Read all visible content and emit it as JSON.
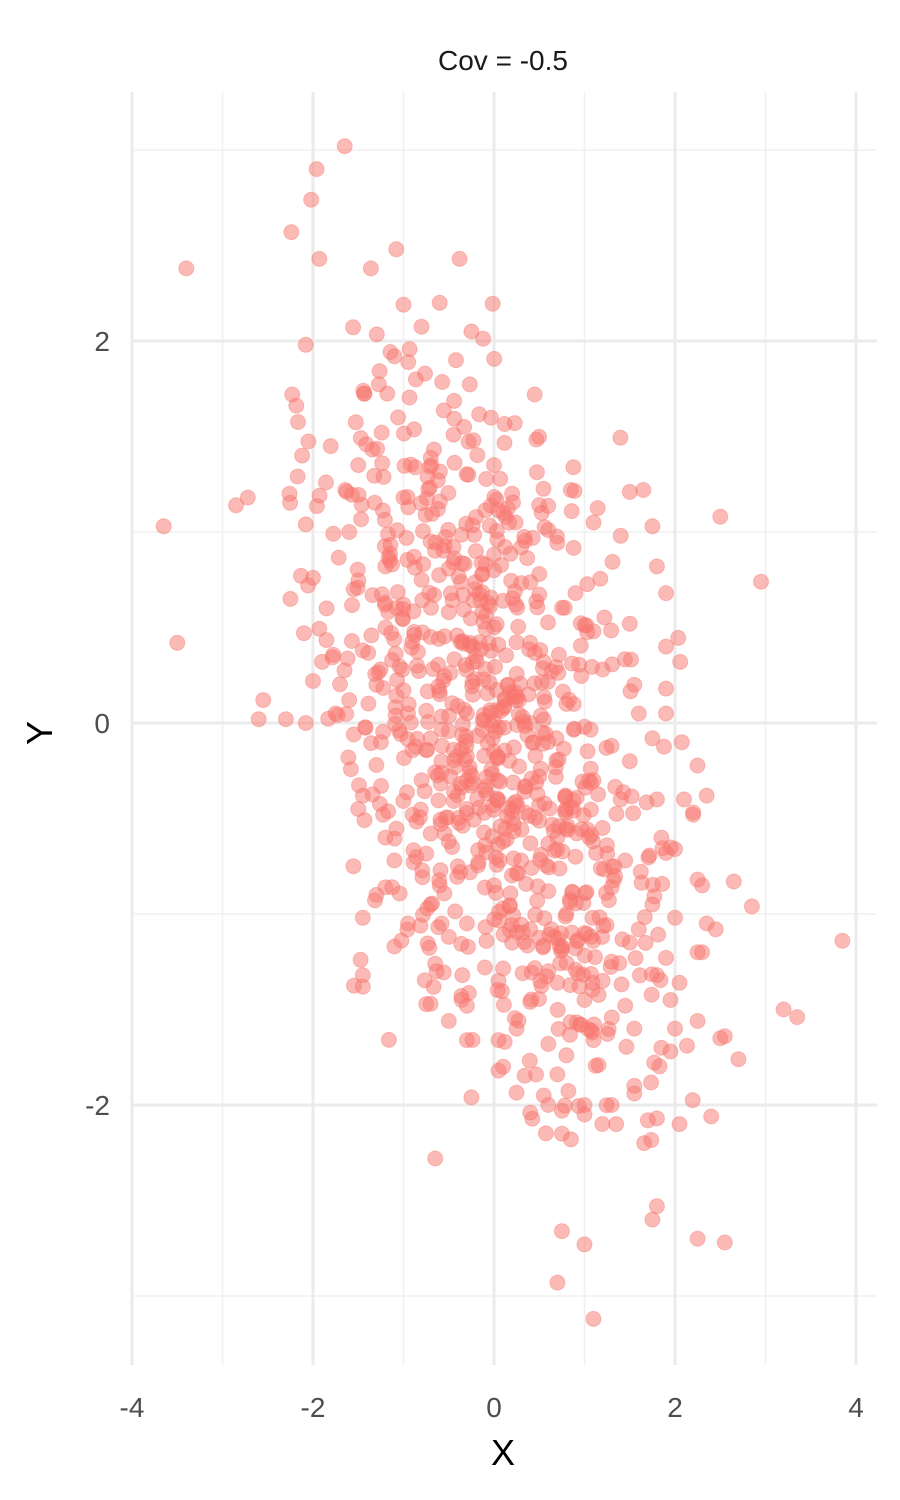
{
  "chart_data": {
    "type": "scatter",
    "title": "Cov = -0.5",
    "xlabel": "X",
    "ylabel": "Y",
    "xlim": [
      -4,
      4.2
    ],
    "ylim": [
      -3.4,
      3.4
    ],
    "x_ticks": [
      "-4",
      "-2",
      "0",
      "2",
      "4"
    ],
    "y_ticks": [
      "-2",
      "0",
      "2"
    ],
    "grid": true,
    "point_color": "#F8766D",
    "point_alpha": 0.5,
    "n_points": 1000,
    "series": [
      {
        "points": [
          {
            "x": -1.65,
            "y": 3.02
          },
          {
            "x": -1.96,
            "y": 2.9
          },
          {
            "x": -2.02,
            "y": 2.74
          },
          {
            "x": -2.24,
            "y": 2.57
          },
          {
            "x": -1.93,
            "y": 2.43
          },
          {
            "x": -3.4,
            "y": 2.38
          },
          {
            "x": -1.36,
            "y": 2.38
          },
          {
            "x": -1.08,
            "y": 2.48
          },
          {
            "x": -0.38,
            "y": 2.43
          },
          {
            "x": -1.0,
            "y": 2.19
          },
          {
            "x": -0.6,
            "y": 2.2
          },
          {
            "x": -0.25,
            "y": 2.05
          },
          {
            "x": -2.08,
            "y": 1.98
          },
          {
            "x": -1.1,
            "y": 1.92
          },
          {
            "x": -0.42,
            "y": 1.9
          },
          {
            "x": 0.45,
            "y": 1.72
          },
          {
            "x": -2.23,
            "y": 1.72
          },
          {
            "x": -1.06,
            "y": 1.6
          },
          {
            "x": -0.33,
            "y": 1.55
          },
          {
            "x": 0.23,
            "y": 1.57
          },
          {
            "x": -2.12,
            "y": 1.4
          },
          {
            "x": -1.5,
            "y": 1.35
          },
          {
            "x": 0.0,
            "y": 1.35
          },
          {
            "x": -2.85,
            "y": 1.14
          },
          {
            "x": -2.72,
            "y": 1.18
          },
          {
            "x": -2.26,
            "y": 1.2
          },
          {
            "x": -1.0,
            "y": 1.18
          },
          {
            "x": -0.62,
            "y": 1.12
          },
          {
            "x": 0.2,
            "y": 1.2
          },
          {
            "x": 0.85,
            "y": 1.22
          },
          {
            "x": 1.5,
            "y": 1.21
          },
          {
            "x": 1.65,
            "y": 1.22
          },
          {
            "x": 2.5,
            "y": 1.08
          },
          {
            "x": -3.65,
            "y": 1.03
          },
          {
            "x": -2.08,
            "y": 1.04
          },
          {
            "x": -1.6,
            "y": 1.0
          },
          {
            "x": -0.7,
            "y": 0.95
          },
          {
            "x": -0.2,
            "y": 0.9
          },
          {
            "x": 0.3,
            "y": 0.92
          },
          {
            "x": 0.6,
            "y": 1.01
          },
          {
            "x": 1.1,
            "y": 1.05
          },
          {
            "x": 1.4,
            "y": 0.98
          },
          {
            "x": 1.75,
            "y": 1.03
          },
          {
            "x": -1.2,
            "y": 0.82
          },
          {
            "x": -0.8,
            "y": 0.75
          },
          {
            "x": 0.0,
            "y": 0.8
          },
          {
            "x": 0.5,
            "y": 0.78
          },
          {
            "x": 1.8,
            "y": 0.82
          },
          {
            "x": 2.95,
            "y": 0.74
          },
          {
            "x": -2.0,
            "y": 0.76
          },
          {
            "x": -1.55,
            "y": 0.7
          },
          {
            "x": -1.0,
            "y": 0.62
          },
          {
            "x": -0.5,
            "y": 0.58
          },
          {
            "x": 0.1,
            "y": 0.64
          },
          {
            "x": 0.9,
            "y": 0.68
          },
          {
            "x": 1.9,
            "y": 0.68
          },
          {
            "x": -2.25,
            "y": 0.65
          },
          {
            "x": -1.85,
            "y": 0.6
          },
          {
            "x": -1.2,
            "y": 0.5
          },
          {
            "x": -0.7,
            "y": 0.45
          },
          {
            "x": 0.0,
            "y": 0.5
          },
          {
            "x": 0.4,
            "y": 0.42
          },
          {
            "x": 1.1,
            "y": 0.48
          },
          {
            "x": 1.5,
            "y": 0.52
          },
          {
            "x": -3.5,
            "y": 0.42
          },
          {
            "x": -2.1,
            "y": 0.47
          },
          {
            "x": -1.45,
            "y": 0.38
          },
          {
            "x": -0.85,
            "y": 0.3
          },
          {
            "x": -0.2,
            "y": 0.35
          },
          {
            "x": 0.55,
            "y": 0.32
          },
          {
            "x": 1.2,
            "y": 0.28
          },
          {
            "x": 1.9,
            "y": 0.4
          },
          {
            "x": -1.9,
            "y": 0.32
          },
          {
            "x": -1.3,
            "y": 0.2
          },
          {
            "x": -0.6,
            "y": 0.15
          },
          {
            "x": 0.15,
            "y": 0.2
          },
          {
            "x": 0.8,
            "y": 0.1
          },
          {
            "x": 1.55,
            "y": 0.2
          },
          {
            "x": 1.9,
            "y": 0.18
          },
          {
            "x": -2.0,
            "y": 0.22
          },
          {
            "x": -1.6,
            "y": 0.12
          },
          {
            "x": -0.95,
            "y": 0.05
          },
          {
            "x": -0.3,
            "y": 0.05
          },
          {
            "x": 0.4,
            "y": 0.0
          },
          {
            "x": 1.0,
            "y": -0.02
          },
          {
            "x": 1.6,
            "y": 0.05
          },
          {
            "x": 1.9,
            "y": 0.05
          },
          {
            "x": -2.6,
            "y": 0.02
          },
          {
            "x": -2.55,
            "y": 0.12
          },
          {
            "x": -2.3,
            "y": 0.02
          },
          {
            "x": -2.08,
            "y": 0.0
          },
          {
            "x": -1.75,
            "y": 0.05
          },
          {
            "x": -1.55,
            "y": -0.06
          },
          {
            "x": -1.25,
            "y": -0.1
          },
          {
            "x": -0.7,
            "y": -0.08
          },
          {
            "x": 0.0,
            "y": -0.15
          },
          {
            "x": 0.6,
            "y": -0.1
          },
          {
            "x": 1.3,
            "y": -0.12
          },
          {
            "x": 1.75,
            "y": -0.08
          },
          {
            "x": -1.3,
            "y": -0.22
          },
          {
            "x": -0.8,
            "y": -0.3
          },
          {
            "x": -0.1,
            "y": -0.35
          },
          {
            "x": 0.5,
            "y": -0.28
          },
          {
            "x": 1.1,
            "y": -0.3
          },
          {
            "x": 1.5,
            "y": -0.2
          },
          {
            "x": -1.5,
            "y": -0.45
          },
          {
            "x": -0.9,
            "y": -0.48
          },
          {
            "x": -0.3,
            "y": -0.45
          },
          {
            "x": 0.2,
            "y": -0.5
          },
          {
            "x": 0.8,
            "y": -0.45
          },
          {
            "x": 1.4,
            "y": -0.4
          },
          {
            "x": 1.8,
            "y": -0.4
          },
          {
            "x": 2.1,
            "y": -0.4
          },
          {
            "x": 2.35,
            "y": -0.38
          },
          {
            "x": -1.45,
            "y": -0.38
          },
          {
            "x": -1.2,
            "y": -0.6
          },
          {
            "x": -0.5,
            "y": -0.62
          },
          {
            "x": 0.1,
            "y": -0.62
          },
          {
            "x": 0.7,
            "y": -0.6
          },
          {
            "x": 1.2,
            "y": -0.55
          },
          {
            "x": 1.85,
            "y": -0.6
          },
          {
            "x": 2.2,
            "y": -0.48
          },
          {
            "x": -1.1,
            "y": -0.72
          },
          {
            "x": -0.4,
            "y": -0.75
          },
          {
            "x": 0.3,
            "y": -0.72
          },
          {
            "x": 0.9,
            "y": -0.7
          },
          {
            "x": 1.45,
            "y": -0.72
          },
          {
            "x": 1.9,
            "y": -0.68
          },
          {
            "x": 2.0,
            "y": -0.66
          },
          {
            "x": -1.2,
            "y": -0.86
          },
          {
            "x": -0.6,
            "y": -0.85
          },
          {
            "x": 0.0,
            "y": -0.85
          },
          {
            "x": 0.6,
            "y": -0.88
          },
          {
            "x": 1.3,
            "y": -0.86
          },
          {
            "x": 2.25,
            "y": -0.82
          },
          {
            "x": 2.3,
            "y": -0.85
          },
          {
            "x": 2.65,
            "y": -0.83
          },
          {
            "x": -1.3,
            "y": -0.9
          },
          {
            "x": -0.7,
            "y": -0.95
          },
          {
            "x": 0.1,
            "y": -0.97
          },
          {
            "x": 0.8,
            "y": -1.0
          },
          {
            "x": 1.75,
            "y": -0.95
          },
          {
            "x": 2.85,
            "y": -0.96
          },
          {
            "x": -1.45,
            "y": -1.02
          },
          {
            "x": -0.95,
            "y": -1.05
          },
          {
            "x": -0.3,
            "y": -1.05
          },
          {
            "x": 0.4,
            "y": -1.08
          },
          {
            "x": 1.0,
            "y": -1.1
          },
          {
            "x": 1.6,
            "y": -1.08
          },
          {
            "x": 2.0,
            "y": -1.02
          },
          {
            "x": 2.35,
            "y": -1.05
          },
          {
            "x": 2.45,
            "y": -1.08
          },
          {
            "x": -1.1,
            "y": -1.17
          },
          {
            "x": -0.5,
            "y": -1.12
          },
          {
            "x": 0.2,
            "y": -1.15
          },
          {
            "x": 0.9,
            "y": -1.18
          },
          {
            "x": 1.5,
            "y": -1.15
          },
          {
            "x": 2.3,
            "y": -1.2
          },
          {
            "x": 3.85,
            "y": -1.14
          },
          {
            "x": -0.65,
            "y": -1.26
          },
          {
            "x": -0.1,
            "y": -1.28
          },
          {
            "x": 0.6,
            "y": -1.3
          },
          {
            "x": 1.3,
            "y": -1.25
          },
          {
            "x": 1.9,
            "y": -1.23
          },
          {
            "x": 2.25,
            "y": -1.2
          },
          {
            "x": -1.45,
            "y": -1.32
          },
          {
            "x": -1.45,
            "y": -1.38
          },
          {
            "x": -0.35,
            "y": -1.32
          },
          {
            "x": 0.05,
            "y": -1.35
          },
          {
            "x": 0.7,
            "y": -1.36
          },
          {
            "x": 1.2,
            "y": -1.35
          },
          {
            "x": 1.8,
            "y": -1.32
          },
          {
            "x": 2.05,
            "y": -1.36
          },
          {
            "x": -0.7,
            "y": -1.47
          },
          {
            "x": -0.3,
            "y": -1.48
          },
          {
            "x": 0.4,
            "y": -1.46
          },
          {
            "x": 1.0,
            "y": -1.45
          },
          {
            "x": 1.45,
            "y": -1.48
          },
          {
            "x": 1.95,
            "y": -1.45
          },
          {
            "x": 3.2,
            "y": -1.5
          },
          {
            "x": 3.35,
            "y": -1.54
          },
          {
            "x": -0.5,
            "y": -1.56
          },
          {
            "x": 0.25,
            "y": -1.6
          },
          {
            "x": 0.95,
            "y": -1.58
          },
          {
            "x": 1.55,
            "y": -1.6
          },
          {
            "x": 2.0,
            "y": -1.6
          },
          {
            "x": 2.25,
            "y": -1.56
          },
          {
            "x": -0.3,
            "y": -1.66
          },
          {
            "x": 0.05,
            "y": -1.66
          },
          {
            "x": 0.6,
            "y": -1.68
          },
          {
            "x": 1.1,
            "y": -1.66
          },
          {
            "x": 1.85,
            "y": -1.7
          },
          {
            "x": 2.5,
            "y": -1.65
          },
          {
            "x": 2.55,
            "y": -1.64
          },
          {
            "x": 0.8,
            "y": -1.74
          },
          {
            "x": 1.95,
            "y": -1.72
          },
          {
            "x": 2.7,
            "y": -1.76
          },
          {
            "x": 0.05,
            "y": -1.82
          },
          {
            "x": 0.7,
            "y": -1.84
          },
          {
            "x": 0.1,
            "y": -1.8
          },
          {
            "x": 1.55,
            "y": -1.9
          },
          {
            "x": 0.55,
            "y": -1.95
          },
          {
            "x": 0.6,
            "y": -2.0
          },
          {
            "x": -0.25,
            "y": -1.96
          },
          {
            "x": 1.0,
            "y": -2.0
          },
          {
            "x": 1.3,
            "y": -2.0
          },
          {
            "x": 1.55,
            "y": -1.94
          },
          {
            "x": 0.4,
            "y": -2.04
          },
          {
            "x": 0.75,
            "y": -2.03
          },
          {
            "x": 1.0,
            "y": -2.05
          },
          {
            "x": 1.7,
            "y": -2.08
          },
          {
            "x": 1.8,
            "y": -2.07
          },
          {
            "x": 2.05,
            "y": -2.1
          },
          {
            "x": 2.4,
            "y": -2.06
          },
          {
            "x": 1.35,
            "y": -2.1
          },
          {
            "x": 0.75,
            "y": -2.15
          },
          {
            "x": 0.85,
            "y": -2.18
          },
          {
            "x": -0.65,
            "y": -2.28
          },
          {
            "x": 1.8,
            "y": -2.53
          },
          {
            "x": 1.75,
            "y": -2.6
          },
          {
            "x": 0.75,
            "y": -2.66
          },
          {
            "x": 2.25,
            "y": -2.7
          },
          {
            "x": 2.55,
            "y": -2.72
          },
          {
            "x": 1.0,
            "y": -2.73
          },
          {
            "x": 0.7,
            "y": -2.93
          },
          {
            "x": 1.1,
            "y": -3.12
          }
        ]
      }
    ]
  }
}
